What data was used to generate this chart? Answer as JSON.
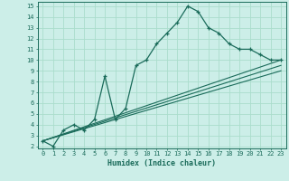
{
  "title": "",
  "xlabel": "Humidex (Indice chaleur)",
  "ylabel": "",
  "bg_color": "#cceee8",
  "grid_color": "#aaddcc",
  "line_color": "#1a6b5a",
  "xlim": [
    -0.5,
    23.5
  ],
  "ylim": [
    1.8,
    15.4
  ],
  "xticks": [
    0,
    1,
    2,
    3,
    4,
    5,
    6,
    7,
    8,
    9,
    10,
    11,
    12,
    13,
    14,
    15,
    16,
    17,
    18,
    19,
    20,
    21,
    22,
    23
  ],
  "yticks": [
    2,
    3,
    4,
    5,
    6,
    7,
    8,
    9,
    10,
    11,
    12,
    13,
    14,
    15
  ],
  "series1_x": [
    0,
    1,
    2,
    3,
    4,
    5,
    6,
    7,
    8,
    9,
    10,
    11,
    12,
    13,
    14,
    15,
    16,
    17,
    18,
    19,
    20,
    21,
    22,
    23
  ],
  "series1_y": [
    2.5,
    2.0,
    3.5,
    4.0,
    3.5,
    4.5,
    8.5,
    4.5,
    5.5,
    9.5,
    10.0,
    11.5,
    12.5,
    13.5,
    15.0,
    14.5,
    13.0,
    12.5,
    11.5,
    11.0,
    11.0,
    10.5,
    10.0,
    10.0
  ],
  "series2_x": [
    0,
    23
  ],
  "series2_y": [
    2.5,
    10.0
  ],
  "series3_x": [
    0,
    23
  ],
  "series3_y": [
    2.5,
    9.5
  ],
  "series4_x": [
    0,
    23
  ],
  "series4_y": [
    2.5,
    9.0
  ],
  "xlabel_fontsize": 6.0,
  "tick_fontsize": 5.0
}
